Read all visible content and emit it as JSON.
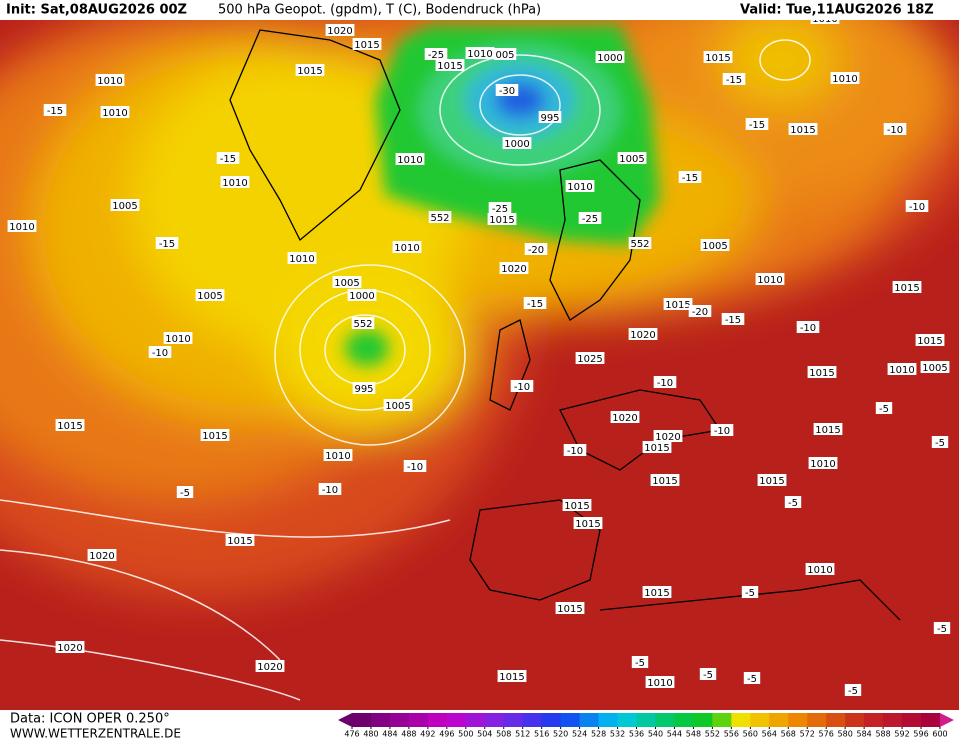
{
  "header": {
    "init": "Init: Sat,08AUG2026 00Z",
    "title": "500 hPa Geopot. (gpdm), T (C), Bodendruck (hPa)",
    "valid": "Valid: Tue,11AUG2026 18Z"
  },
  "footer": {
    "data": "Data: ICON OPER 0.250°",
    "site": "WWW.WETTERZENTRALE.DE"
  },
  "colorbar": {
    "ticks": [
      476,
      480,
      484,
      488,
      492,
      496,
      500,
      504,
      508,
      512,
      516,
      520,
      524,
      528,
      532,
      536,
      540,
      544,
      548,
      552,
      556,
      560,
      564,
      568,
      572,
      576,
      580,
      584,
      588,
      592,
      596,
      600
    ]
  },
  "map_labels": [
    "1010",
    "1010",
    "-15",
    "1010",
    "-15",
    "1005",
    "1010",
    "-15",
    "1005",
    "1010",
    "-10",
    "1010",
    "1005",
    "1000",
    "995",
    "1005",
    "1010",
    "1015",
    "1015",
    "-5",
    "-10",
    "-10",
    "1015",
    "1020",
    "1020",
    "1020",
    "1020",
    "1015",
    "1015",
    "-25",
    "1015",
    "1010",
    "005",
    "1000",
    "-30",
    "995",
    "1000",
    "1010",
    "1005",
    "1010",
    "-25",
    "1015",
    "-25",
    "-20",
    "1010",
    "1020",
    "-15",
    "1005",
    "-15",
    "1015",
    "-15",
    "-15",
    "1010",
    "1015",
    "-10",
    "-10",
    "1010",
    "1015",
    "-20",
    "-15",
    "1020",
    "1025",
    "-10",
    "-10",
    "-10",
    "1015",
    "1015",
    "1015",
    "1010",
    "1005",
    "1020",
    "1020",
    "1015",
    "-10",
    "-10",
    "1015",
    "-5",
    "-5",
    "1010",
    "1015",
    "1015",
    "-5",
    "1015",
    "1015",
    "1010",
    "-5",
    "1015",
    "1015",
    "-5",
    "-5",
    "-5",
    "-5",
    "1010",
    "1015",
    "-5",
    "552",
    "552",
    "552",
    "1010"
  ]
}
